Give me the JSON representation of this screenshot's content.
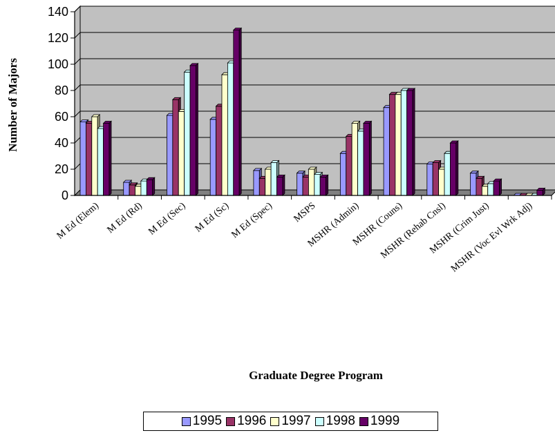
{
  "chart_data": {
    "type": "bar",
    "title": "",
    "xlabel": "Graduate Degree Program",
    "ylabel": "Number of Majors",
    "ylim": [
      0,
      140
    ],
    "yticks": [
      0,
      20,
      40,
      60,
      80,
      100,
      120,
      140
    ],
    "grid": true,
    "legend_position": "bottom",
    "categories": [
      "M Ed (Elem)",
      "M Ed (Rd)",
      "M Ed (Sec)",
      "M Ed (Sc)",
      "M Ed (Spec)",
      "MSPS",
      "MSHR  (Admin)",
      "MSHR  (Couns)",
      "MSHR  (Rehab Cnsl)",
      "MSHR  (Crim Just)",
      "MSHR  (Voc Evl Wrk Adj)"
    ],
    "series": [
      {
        "name": "1995",
        "color": "#9999ff",
        "values": [
          56,
          10,
          61,
          58,
          19,
          17,
          32,
          67,
          24,
          17,
          0
        ]
      },
      {
        "name": "1996",
        "color": "#993366",
        "values": [
          55,
          8,
          73,
          68,
          13,
          14,
          45,
          77,
          25,
          13,
          0
        ]
      },
      {
        "name": "1997",
        "color": "#ffffcc",
        "values": [
          60,
          7,
          64,
          92,
          20,
          20,
          55,
          77,
          20,
          7,
          0
        ]
      },
      {
        "name": "1998",
        "color": "#ccffff",
        "values": [
          51,
          11,
          94,
          101,
          25,
          16,
          49,
          80,
          32,
          9,
          0
        ]
      },
      {
        "name": "1999",
        "color": "#660066",
        "values": [
          55,
          12,
          99,
          126,
          14,
          14,
          55,
          80,
          40,
          11,
          4
        ]
      }
    ]
  }
}
